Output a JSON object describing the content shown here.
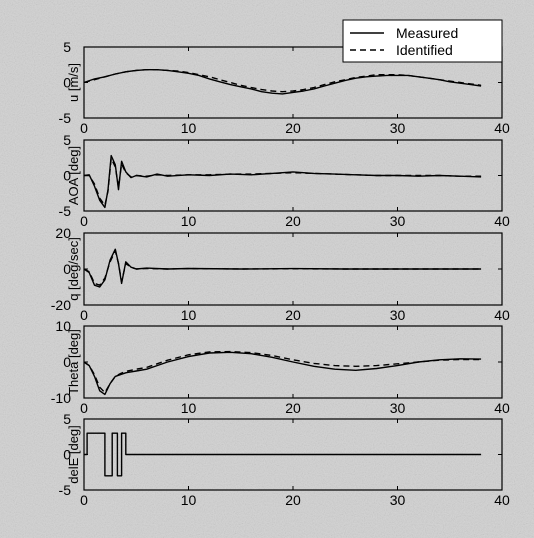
{
  "legend": {
    "position": "top-right",
    "entries": [
      {
        "label": "Measured",
        "style": "solid"
      },
      {
        "label": "Identified",
        "style": "dashed"
      }
    ]
  },
  "chart_data": [
    {
      "type": "line",
      "ylabel": "u [m/s]",
      "xlim": [
        0,
        40
      ],
      "ylim": [
        -5,
        5
      ],
      "xticks": [
        "0",
        "10",
        "20",
        "30",
        "40"
      ],
      "yticks": [
        "5",
        "0",
        "-5"
      ],
      "grid": false,
      "series": [
        {
          "name": "Measured",
          "style": "solid",
          "x": [
            0,
            1,
            2,
            3,
            4,
            5,
            6,
            7,
            8,
            9,
            10,
            11,
            12,
            13,
            14,
            15,
            16,
            17,
            18,
            19,
            20,
            21,
            22,
            23,
            24,
            25,
            26,
            27,
            28,
            29,
            30,
            31,
            32,
            33,
            34,
            35,
            36,
            37,
            38
          ],
          "y": [
            0,
            0.5,
            0.8,
            1.2,
            1.5,
            1.7,
            1.8,
            1.8,
            1.7,
            1.5,
            1.3,
            1.0,
            0.5,
            0.1,
            -0.3,
            -0.6,
            -0.9,
            -1.3,
            -1.5,
            -1.6,
            -1.4,
            -1.2,
            -0.9,
            -0.5,
            -0.1,
            0.3,
            0.6,
            0.8,
            0.9,
            1.0,
            1.0,
            1.0,
            0.8,
            0.6,
            0.4,
            0.1,
            -0.1,
            -0.3,
            -0.5
          ]
        },
        {
          "name": "Identified",
          "style": "dashed",
          "x": [
            0,
            1,
            2,
            3,
            4,
            5,
            6,
            7,
            8,
            9,
            10,
            11,
            12,
            13,
            14,
            15,
            16,
            17,
            18,
            19,
            20,
            21,
            22,
            23,
            24,
            25,
            26,
            27,
            28,
            29,
            30,
            31,
            32,
            33,
            34,
            35,
            36,
            37,
            38
          ],
          "y": [
            0,
            0.4,
            0.8,
            1.2,
            1.5,
            1.7,
            1.8,
            1.8,
            1.7,
            1.6,
            1.4,
            1.1,
            0.8,
            0.4,
            0,
            -0.4,
            -0.7,
            -1.0,
            -1.2,
            -1.3,
            -1.2,
            -1.0,
            -0.7,
            -0.3,
            0.1,
            0.4,
            0.7,
            0.9,
            1.1,
            1.1,
            1.1,
            1.0,
            0.8,
            0.6,
            0.4,
            0.2,
            0,
            -0.2,
            -0.4
          ]
        }
      ]
    },
    {
      "type": "line",
      "ylabel": "AOA [deg]",
      "xlim": [
        0,
        40
      ],
      "ylim": [
        -5,
        5
      ],
      "xticks": [
        "0",
        "10",
        "20",
        "30",
        "40"
      ],
      "yticks": [
        "5",
        "0",
        "-5"
      ],
      "grid": false,
      "series": [
        {
          "name": "Measured",
          "style": "solid",
          "x": [
            0,
            0.5,
            1,
            1.5,
            2,
            2.3,
            2.6,
            3,
            3.3,
            3.6,
            4,
            4.5,
            5,
            6,
            7,
            8,
            10,
            12,
            14,
            16,
            18,
            20,
            22,
            24,
            26,
            28,
            30,
            32,
            34,
            36,
            38
          ],
          "y": [
            0,
            0.1,
            -1.5,
            -3.5,
            -4.5,
            -2,
            2.8,
            1.5,
            -2,
            2,
            0.5,
            -0.3,
            0,
            -0.2,
            0.2,
            -0.1,
            0.1,
            0,
            0.2,
            0.1,
            0.3,
            0.5,
            0.3,
            0.2,
            0.1,
            0,
            0,
            -0.1,
            0,
            -0.1,
            -0.2
          ]
        },
        {
          "name": "Identified",
          "style": "dashed",
          "x": [
            0,
            0.5,
            1,
            1.5,
            2,
            2.3,
            2.6,
            3,
            3.3,
            3.6,
            4,
            4.5,
            5,
            6,
            7,
            8,
            10,
            12,
            14,
            16,
            18,
            20,
            22,
            24,
            26,
            28,
            30,
            32,
            34,
            36,
            38
          ],
          "y": [
            0,
            0,
            -1.2,
            -3.2,
            -4.2,
            -2.2,
            2.4,
            1.2,
            -1.6,
            1.6,
            0.4,
            -0.2,
            0,
            -0.1,
            0.1,
            0,
            0.1,
            0.1,
            0.2,
            0.2,
            0.3,
            0.4,
            0.3,
            0.2,
            0.1,
            0,
            0,
            0,
            0,
            -0.1,
            -0.1
          ]
        }
      ]
    },
    {
      "type": "line",
      "ylabel": "q [deg/sec]",
      "xlim": [
        0,
        40
      ],
      "ylim": [
        -20,
        20
      ],
      "xticks": [
        "0",
        "10",
        "20",
        "30",
        "40"
      ],
      "yticks": [
        "20",
        "0",
        "-20"
      ],
      "grid": false,
      "series": [
        {
          "name": "Measured",
          "style": "solid",
          "x": [
            0,
            0.5,
            1,
            1.5,
            2,
            2.5,
            3,
            3.3,
            3.6,
            4,
            4.5,
            5,
            6,
            8,
            10,
            15,
            20,
            25,
            30,
            35,
            38
          ],
          "y": [
            0,
            -2,
            -9,
            -10,
            -6,
            5,
            11,
            3,
            -8,
            4,
            1,
            0,
            0.5,
            0,
            0.3,
            0,
            0.2,
            0,
            0,
            0,
            0
          ]
        },
        {
          "name": "Identified",
          "style": "dashed",
          "x": [
            0,
            0.5,
            1,
            1.5,
            2,
            2.5,
            3,
            3.3,
            3.6,
            4,
            4.5,
            5,
            6,
            8,
            10,
            15,
            20,
            25,
            30,
            35,
            38
          ],
          "y": [
            0,
            -1.5,
            -8,
            -9,
            -5,
            4,
            10,
            3,
            -7,
            3,
            1,
            0,
            0.3,
            0,
            0.2,
            0,
            0.1,
            0,
            0,
            0,
            0
          ]
        }
      ]
    },
    {
      "type": "line",
      "ylabel": "Theta [deg]",
      "xlim": [
        0,
        40
      ],
      "ylim": [
        -10,
        10
      ],
      "xticks": [
        "0",
        "10",
        "20",
        "30",
        "40"
      ],
      "yticks": [
        "10",
        "0",
        "-10"
      ],
      "grid": false,
      "series": [
        {
          "name": "Measured",
          "style": "solid",
          "x": [
            0,
            0.5,
            1,
            1.5,
            2,
            2.5,
            3,
            3.5,
            4,
            5,
            6,
            7,
            8,
            10,
            12,
            14,
            16,
            18,
            20,
            22,
            24,
            26,
            28,
            30,
            32,
            34,
            36,
            38
          ],
          "y": [
            0,
            -1,
            -4,
            -8,
            -9,
            -6,
            -4,
            -3.5,
            -3,
            -2.5,
            -2,
            -1,
            0,
            1.5,
            2.5,
            2.7,
            2.3,
            1.3,
            0,
            -1.2,
            -2,
            -2.3,
            -1.8,
            -1,
            0,
            0.6,
            0.9,
            0.8
          ]
        },
        {
          "name": "Identified",
          "style": "dashed",
          "x": [
            0,
            0.5,
            1,
            1.5,
            2,
            2.5,
            3,
            3.5,
            4,
            5,
            6,
            7,
            8,
            10,
            12,
            14,
            16,
            18,
            20,
            22,
            24,
            26,
            28,
            30,
            32,
            34,
            36,
            38
          ],
          "y": [
            0,
            -1,
            -3.5,
            -7,
            -8.5,
            -6,
            -4,
            -3.2,
            -2.6,
            -2,
            -1.5,
            -0.5,
            0.5,
            2,
            2.8,
            2.9,
            2.6,
            1.8,
            0.6,
            -0.4,
            -1,
            -1.2,
            -1,
            -0.5,
            0,
            0.5,
            0.7,
            0.7
          ]
        }
      ]
    },
    {
      "type": "line",
      "ylabel": "delE [deg]",
      "xlim": [
        0,
        40
      ],
      "ylim": [
        -5,
        5
      ],
      "xticks": [
        "0",
        "10",
        "20",
        "30",
        "40"
      ],
      "yticks": [
        "5",
        "0",
        "-5"
      ],
      "grid": false,
      "series": [
        {
          "name": "Measured",
          "style": "solid",
          "x": [
            0,
            0.3,
            0.3,
            2,
            2,
            2.7,
            2.7,
            3.2,
            3.2,
            3.6,
            3.6,
            4,
            4,
            38
          ],
          "y": [
            0,
            0,
            3,
            3,
            -3,
            -3,
            3,
            3,
            -3,
            -3,
            3,
            3,
            0,
            0
          ]
        }
      ]
    }
  ]
}
